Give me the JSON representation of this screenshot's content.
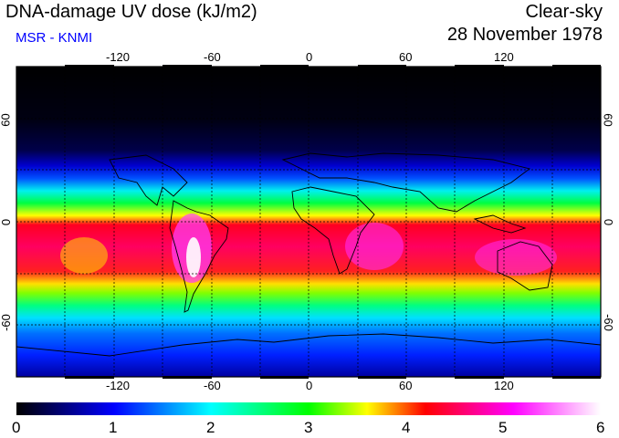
{
  "header": {
    "title": "DNA-damage UV dose (kJ/m2)",
    "source": "MSR - KNMI",
    "condition": "Clear-sky",
    "date": "28 November 1978"
  },
  "map": {
    "lon_ticks": [
      "-120",
      "-60",
      "0",
      "60",
      "120"
    ],
    "lat_ticks": [
      "60",
      "0",
      "-60"
    ]
  },
  "colorbar": {
    "labels": [
      "0",
      "1",
      "2",
      "3",
      "4",
      "5",
      "6"
    ],
    "colors": [
      "#000000",
      "#0000ff",
      "#00ffff",
      "#00ff00",
      "#ffff00",
      "#ff0000",
      "#ff00ff",
      "#ffffff"
    ]
  }
}
